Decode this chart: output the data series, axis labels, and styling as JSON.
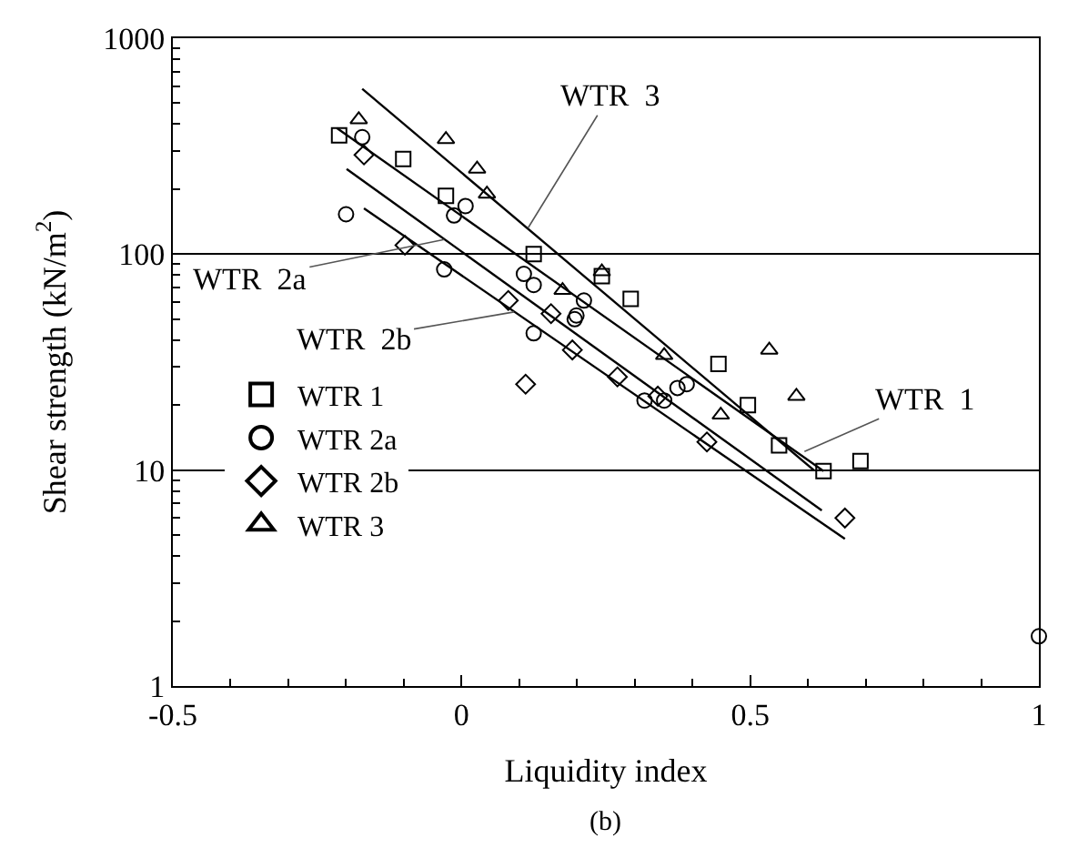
{
  "chart_data": {
    "type": "scatter",
    "xlabel": "Liquidity index",
    "ylabel": "Shear strength (kN/m$^{2}$)",
    "log": "y",
    "grid": "y",
    "legend": "bottom left",
    "xlim": [
      -0.5,
      1
    ],
    "ylim": [
      1,
      1000
    ],
    "xticks": [
      -0.5,
      0,
      0.5,
      1
    ],
    "yticks": [
      1,
      10,
      100,
      1000
    ],
    "series": [
      {
        "name": "WTR 1",
        "marker": "square",
        "color": "#000000",
        "x": [
          -0.212,
          -0.101,
          -0.027,
          0.125,
          0.243,
          0.293,
          0.445,
          0.496,
          0.55,
          0.627,
          0.691
        ],
        "values": [
          355,
          276,
          186,
          100,
          79,
          62,
          31,
          20,
          13,
          9.9,
          11
        ]
      },
      {
        "name": "WTR 2a",
        "marker": "circle",
        "color": "#000000",
        "x": [
          -0.2,
          -0.172,
          -0.03,
          -0.013,
          0.007,
          0.108,
          0.125,
          0.125,
          0.196,
          0.212,
          0.199,
          0.317,
          0.351,
          0.374,
          0.39,
          1.0
        ],
        "values": [
          153,
          348,
          85,
          151,
          167,
          81,
          72,
          43,
          50,
          61,
          52,
          21,
          21,
          24,
          25,
          1.7
        ]
      },
      {
        "name": "WTR 2b",
        "marker": "diamond",
        "color": "#000000",
        "x": [
          -0.169,
          -0.098,
          0.111,
          0.425,
          0.664,
          0.081,
          0.155,
          0.192,
          0.27,
          0.34
        ],
        "values": [
          288,
          110,
          25,
          13.5,
          6.0,
          61,
          53,
          36,
          27,
          22
        ]
      },
      {
        "name": "WTR 3",
        "marker": "triangle",
        "color": "#000000",
        "x": [
          -0.178,
          -0.027,
          0.027,
          0.044,
          0.243,
          0.175,
          0.351,
          0.533,
          0.58,
          0.449
        ],
        "values": [
          420,
          340,
          248,
          190,
          83,
          68,
          34,
          36,
          22,
          18
        ]
      },
      {
        "type": "line",
        "color": "#000000",
        "x": [
          -0.172,
          0.61
        ],
        "values": [
          583,
          10
        ]
      },
      {
        "type": "line",
        "color": "#000000",
        "x": [
          -0.216,
          0.627
        ],
        "values": [
          384,
          9.9
        ]
      },
      {
        "type": "line",
        "color": "#000000",
        "x": [
          -0.199,
          0.624
        ],
        "values": [
          248,
          6.5
        ]
      },
      {
        "type": "line",
        "color": "#000000",
        "x": [
          -0.169,
          0.664
        ],
        "values": [
          163,
          4.8
        ]
      }
    ],
    "annotations": [
      {
        "text": "WTR  3",
        "x": 0.115,
        "y": 132
      },
      {
        "text": "WTR  2a",
        "x": -0.03,
        "y": 117
      },
      {
        "text": "WTR  2b",
        "x": 0.091,
        "y": 54
      },
      {
        "text": "WTR  1",
        "x": 0.594,
        "y": 12.2
      },
      "(b)"
    ]
  }
}
